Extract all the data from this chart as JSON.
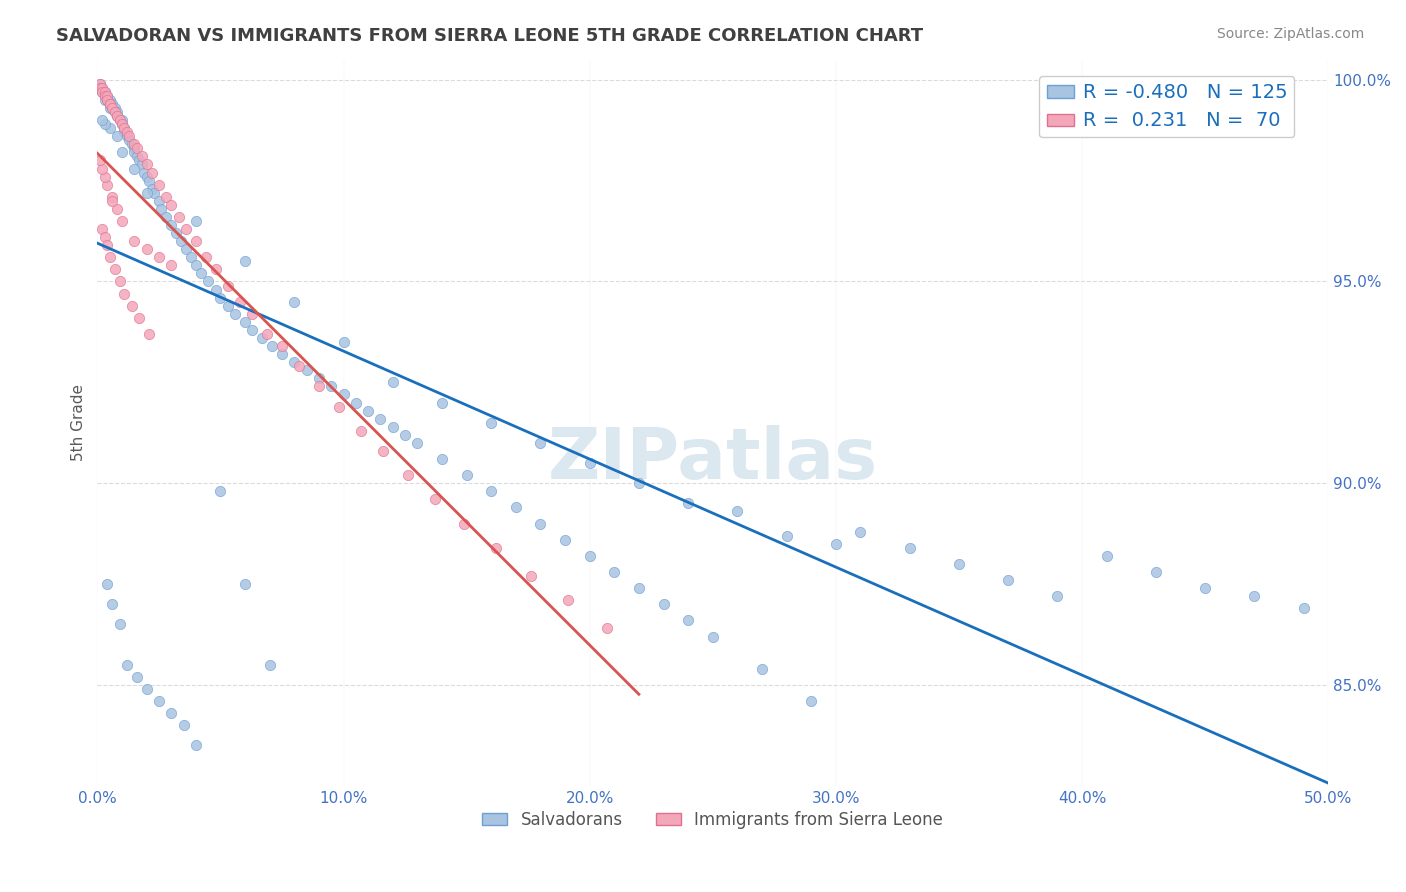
{
  "title": "SALVADORAN VS IMMIGRANTS FROM SIERRA LEONE 5TH GRADE CORRELATION CHART",
  "source": "Source: ZipAtlas.com",
  "ylabel": "5th Grade",
  "xlim": [
    0.0,
    0.5
  ],
  "ylim": [
    0.825,
    1.005
  ],
  "yticks": [
    0.85,
    0.9,
    0.95,
    1.0
  ],
  "ytick_labels": [
    "85.0%",
    "90.0%",
    "95.0%",
    "100.0%"
  ],
  "xticks": [
    0.0,
    0.1,
    0.2,
    0.3,
    0.4,
    0.5
  ],
  "xtick_labels": [
    "0.0%",
    "10.0%",
    "20.0%",
    "30.0%",
    "40.0%",
    "50.0%"
  ],
  "legend_bottom": [
    "Salvadorans",
    "Immigrants from Sierra Leone"
  ],
  "blue_color": "#a8c4e0",
  "pink_color": "#f4a7b9",
  "line_blue": "#1a6fbd",
  "line_pink": "#d9534f",
  "dot_blue_edge": "#6ca0d4",
  "dot_pink_edge": "#e07090",
  "watermark": "ZIPatlas",
  "watermark_color": "#dce8f0",
  "background_color": "#ffffff",
  "title_color": "#404040",
  "axis_label_color": "#5a5a5a",
  "tick_color": "#4472c4",
  "grid_color": "#cccccc",
  "blue_scatter_x": [
    0.001,
    0.001,
    0.002,
    0.002,
    0.003,
    0.003,
    0.003,
    0.004,
    0.004,
    0.005,
    0.005,
    0.005,
    0.006,
    0.006,
    0.007,
    0.007,
    0.008,
    0.008,
    0.009,
    0.01,
    0.01,
    0.011,
    0.011,
    0.012,
    0.013,
    0.014,
    0.015,
    0.015,
    0.016,
    0.017,
    0.018,
    0.019,
    0.02,
    0.021,
    0.022,
    0.023,
    0.025,
    0.026,
    0.028,
    0.03,
    0.032,
    0.034,
    0.036,
    0.038,
    0.04,
    0.042,
    0.045,
    0.048,
    0.05,
    0.053,
    0.056,
    0.06,
    0.063,
    0.067,
    0.071,
    0.075,
    0.08,
    0.085,
    0.09,
    0.095,
    0.1,
    0.105,
    0.11,
    0.115,
    0.12,
    0.125,
    0.13,
    0.14,
    0.15,
    0.16,
    0.17,
    0.18,
    0.19,
    0.2,
    0.21,
    0.22,
    0.23,
    0.24,
    0.25,
    0.27,
    0.29,
    0.31,
    0.33,
    0.35,
    0.37,
    0.39,
    0.41,
    0.43,
    0.45,
    0.47,
    0.49,
    0.3,
    0.28,
    0.26,
    0.24,
    0.22,
    0.2,
    0.18,
    0.16,
    0.14,
    0.12,
    0.1,
    0.08,
    0.06,
    0.04,
    0.02,
    0.015,
    0.01,
    0.008,
    0.005,
    0.003,
    0.002,
    0.004,
    0.006,
    0.009,
    0.012,
    0.016,
    0.02,
    0.025,
    0.03,
    0.035,
    0.04,
    0.05,
    0.06,
    0.07
  ],
  "blue_scatter_y": [
    0.999,
    0.998,
    0.998,
    0.997,
    0.997,
    0.996,
    0.995,
    0.996,
    0.995,
    0.995,
    0.994,
    0.993,
    0.994,
    0.993,
    0.993,
    0.992,
    0.992,
    0.991,
    0.99,
    0.99,
    0.989,
    0.988,
    0.987,
    0.986,
    0.985,
    0.984,
    0.983,
    0.982,
    0.981,
    0.98,
    0.979,
    0.977,
    0.976,
    0.975,
    0.973,
    0.972,
    0.97,
    0.968,
    0.966,
    0.964,
    0.962,
    0.96,
    0.958,
    0.956,
    0.954,
    0.952,
    0.95,
    0.948,
    0.946,
    0.944,
    0.942,
    0.94,
    0.938,
    0.936,
    0.934,
    0.932,
    0.93,
    0.928,
    0.926,
    0.924,
    0.922,
    0.92,
    0.918,
    0.916,
    0.914,
    0.912,
    0.91,
    0.906,
    0.902,
    0.898,
    0.894,
    0.89,
    0.886,
    0.882,
    0.878,
    0.874,
    0.87,
    0.866,
    0.862,
    0.854,
    0.846,
    0.888,
    0.884,
    0.88,
    0.876,
    0.872,
    0.882,
    0.878,
    0.874,
    0.872,
    0.869,
    0.885,
    0.887,
    0.893,
    0.895,
    0.9,
    0.905,
    0.91,
    0.915,
    0.92,
    0.925,
    0.935,
    0.945,
    0.955,
    0.965,
    0.972,
    0.978,
    0.982,
    0.986,
    0.988,
    0.989,
    0.99,
    0.875,
    0.87,
    0.865,
    0.855,
    0.852,
    0.849,
    0.846,
    0.843,
    0.84,
    0.835,
    0.898,
    0.875,
    0.855
  ],
  "pink_scatter_x": [
    0.001,
    0.001,
    0.002,
    0.002,
    0.003,
    0.003,
    0.004,
    0.004,
    0.005,
    0.005,
    0.006,
    0.007,
    0.008,
    0.009,
    0.01,
    0.011,
    0.012,
    0.013,
    0.015,
    0.016,
    0.018,
    0.02,
    0.022,
    0.025,
    0.028,
    0.03,
    0.033,
    0.036,
    0.04,
    0.044,
    0.048,
    0.053,
    0.058,
    0.063,
    0.069,
    0.075,
    0.082,
    0.09,
    0.098,
    0.107,
    0.116,
    0.126,
    0.137,
    0.149,
    0.162,
    0.176,
    0.191,
    0.207,
    0.01,
    0.008,
    0.006,
    0.004,
    0.003,
    0.002,
    0.001,
    0.015,
    0.02,
    0.025,
    0.03,
    0.002,
    0.003,
    0.004,
    0.005,
    0.007,
    0.009,
    0.011,
    0.014,
    0.017,
    0.021,
    0.006
  ],
  "pink_scatter_y": [
    0.999,
    0.998,
    0.998,
    0.997,
    0.997,
    0.996,
    0.996,
    0.995,
    0.994,
    0.994,
    0.993,
    0.992,
    0.991,
    0.99,
    0.989,
    0.988,
    0.987,
    0.986,
    0.984,
    0.983,
    0.981,
    0.979,
    0.977,
    0.974,
    0.971,
    0.969,
    0.966,
    0.963,
    0.96,
    0.956,
    0.953,
    0.949,
    0.945,
    0.942,
    0.937,
    0.934,
    0.929,
    0.924,
    0.919,
    0.913,
    0.908,
    0.902,
    0.896,
    0.89,
    0.884,
    0.877,
    0.871,
    0.864,
    0.965,
    0.968,
    0.971,
    0.974,
    0.976,
    0.978,
    0.98,
    0.96,
    0.958,
    0.956,
    0.954,
    0.963,
    0.961,
    0.959,
    0.956,
    0.953,
    0.95,
    0.947,
    0.944,
    0.941,
    0.937,
    0.97
  ]
}
